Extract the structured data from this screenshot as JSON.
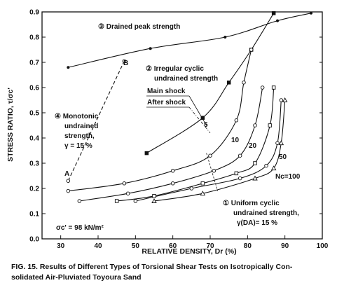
{
  "chart_data": {
    "type": "line",
    "xlabel": "RELATIVE DENSITY, Dr (%)",
    "ylabel": "STRESS RATIO, τ/σc'",
    "xlim": [
      25,
      100
    ],
    "ylim": [
      0,
      0.9
    ],
    "xticks": [
      "30",
      "40",
      "50",
      "60",
      "70",
      "80",
      "90",
      "100"
    ],
    "yticks": [
      "0.0",
      "0.1",
      "0.2",
      "0.3",
      "0.4",
      "0.5",
      "0.6",
      "0.7",
      "0.8",
      "0.9"
    ],
    "grid": false,
    "series": [
      {
        "label": "③ Drained peak strength",
        "points": [
          [
            32,
            0.68
          ],
          [
            54,
            0.755
          ],
          [
            74,
            0.8
          ],
          [
            88,
            0.865
          ],
          [
            97,
            0.895
          ]
        ]
      },
      {
        "label": "② Irregular cyclic undrained strength",
        "points": [
          [
            53,
            0.34
          ],
          [
            68,
            0.48
          ],
          [
            75,
            0.62
          ],
          [
            81,
            0.75
          ],
          [
            87,
            0.895
          ]
        ]
      },
      {
        "label": "④ Monotonic undrained strength, γ = 15 %",
        "points": [
          [
            32,
            0.23
          ],
          [
            47,
            0.705
          ]
        ]
      },
      {
        "label": "Nc=5",
        "points": [
          [
            32,
            0.19
          ],
          [
            47,
            0.22
          ],
          [
            60,
            0.27
          ],
          [
            70,
            0.33
          ],
          [
            77,
            0.47
          ],
          [
            79,
            0.62
          ],
          [
            81,
            0.75
          ]
        ]
      },
      {
        "label": "Nc=10",
        "points": [
          [
            35,
            0.15
          ],
          [
            48,
            0.18
          ],
          [
            60,
            0.22
          ],
          [
            71,
            0.27
          ],
          [
            78,
            0.33
          ],
          [
            82,
            0.45
          ],
          [
            84,
            0.6
          ]
        ]
      },
      {
        "label": "Nc=20",
        "points": [
          [
            45,
            0.15
          ],
          [
            55,
            0.17
          ],
          [
            68,
            0.22
          ],
          [
            77,
            0.26
          ],
          [
            82,
            0.3
          ],
          [
            86,
            0.45
          ],
          [
            87,
            0.6
          ]
        ]
      },
      {
        "label": "Nc=50",
        "points": [
          [
            50,
            0.15
          ],
          [
            65,
            0.2
          ],
          [
            78,
            0.24
          ],
          [
            85,
            0.29
          ],
          [
            88,
            0.38
          ],
          [
            89,
            0.55
          ]
        ]
      },
      {
        "label": "Nc=100",
        "points": [
          [
            55,
            0.15
          ],
          [
            68,
            0.18
          ],
          [
            82,
            0.24
          ],
          [
            87,
            0.28
          ],
          [
            89,
            0.38
          ],
          [
            90,
            0.55
          ]
        ]
      }
    ],
    "annotations": {
      "drained": "③ Drained peak strength",
      "irregular_1": "② Irregular cyclic",
      "irregular_2": "undrained strength",
      "main_shock": "Main shock",
      "after_shock": "After shock",
      "monotonic_1": "④ Monotonic",
      "monotonic_2": "undrained",
      "monotonic_3": "strength,",
      "monotonic_4": "γ = 15 %",
      "point_a": "A",
      "point_b": "B",
      "nc5": "5",
      "nc10": "10",
      "nc20": "20",
      "nc50": "50",
      "nc100": "Nc=100",
      "uniform_1": "① Uniform cyclic",
      "uniform_2": "undrained strength,",
      "uniform_3": "γ(DA)= 15 %",
      "sigma": "σc' = 98 kN/m²"
    }
  },
  "caption": {
    "line1": "FIG. 15.   Results of Different Types of Torsional Shear Tests on Isotropically Con-",
    "line2": "solidated Air-Pluviated Toyoura Sand"
  }
}
